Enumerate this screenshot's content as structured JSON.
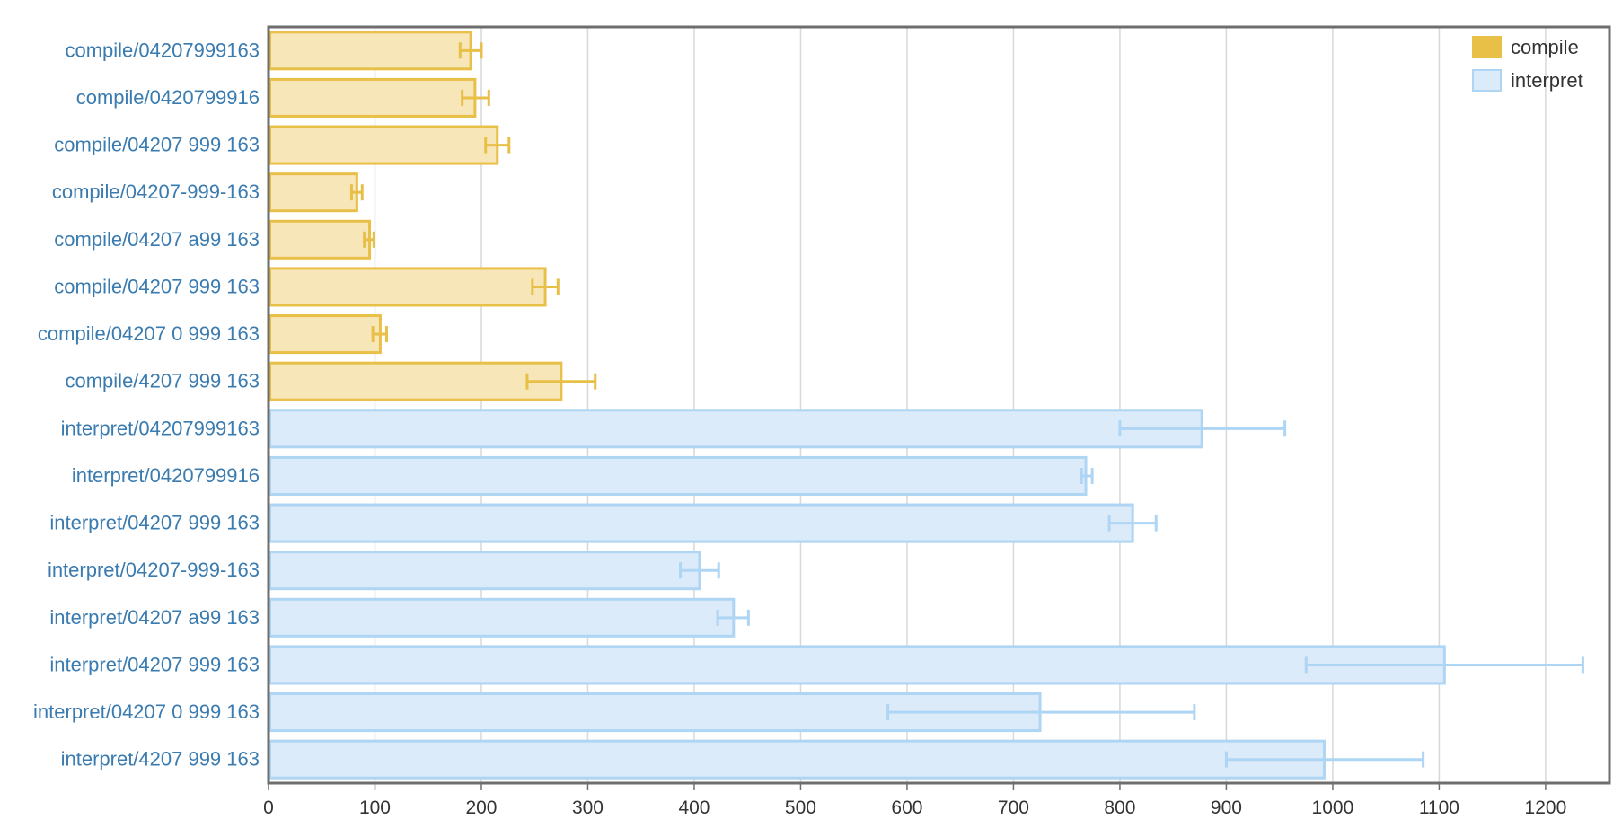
{
  "chart_data": {
    "type": "bar",
    "orientation": "horizontal",
    "categories": [
      "compile/04207999163",
      "compile/0420799916",
      "compile/04207 999 163",
      "compile/04207-999-163",
      "compile/04207 a99 163",
      "compile/04207 999 163",
      "compile/04207 0 999 163",
      "compile/4207 999 163",
      "interpret/04207999163",
      "interpret/0420799916",
      "interpret/04207 999 163",
      "interpret/04207-999-163",
      "interpret/04207 a99 163",
      "interpret/04207 999 163",
      "interpret/04207 0 999 163",
      "interpret/4207 999 163"
    ],
    "series": [
      {
        "name": "compile",
        "color": "#e8bf47",
        "fill": "#f7e6b8",
        "values": [
          190,
          194,
          215,
          83,
          95,
          260,
          105,
          275,
          null,
          null,
          null,
          null,
          null,
          null,
          null,
          null
        ],
        "error_low": [
          180,
          182,
          204,
          78,
          90,
          248,
          98,
          243,
          null,
          null,
          null,
          null,
          null,
          null,
          null,
          null
        ],
        "error_high": [
          200,
          207,
          226,
          88,
          99,
          272,
          111,
          307,
          null,
          null,
          null,
          null,
          null,
          null,
          null,
          null
        ]
      },
      {
        "name": "interpret",
        "color": "#aed5f3",
        "fill": "#dcebfa",
        "values": [
          null,
          null,
          null,
          null,
          null,
          null,
          null,
          null,
          877,
          768,
          812,
          405,
          437,
          1105,
          725,
          992
        ],
        "error_low": [
          null,
          null,
          null,
          null,
          null,
          null,
          null,
          null,
          800,
          764,
          790,
          387,
          422,
          975,
          582,
          900
        ],
        "error_high": [
          null,
          null,
          null,
          null,
          null,
          null,
          null,
          null,
          955,
          774,
          834,
          423,
          451,
          1235,
          870,
          1085
        ]
      }
    ],
    "xlim": [
      0,
      1260
    ],
    "xticks": [
      "0",
      "100",
      "200",
      "300",
      "400",
      "500",
      "600",
      "700",
      "800",
      "900",
      "1000",
      "1100",
      "1200"
    ],
    "grid": true,
    "legend_position": "top-right",
    "legend": [
      "compile",
      "interpret"
    ]
  }
}
